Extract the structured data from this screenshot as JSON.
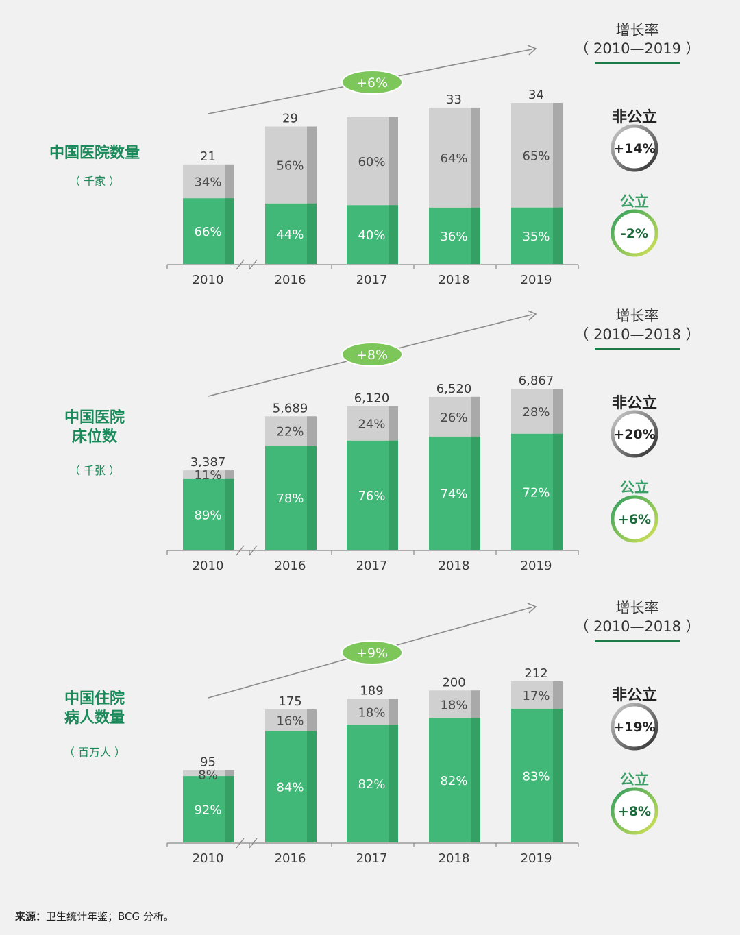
{
  "colors": {
    "public_green": "#41b878",
    "public_green_side": "#34a064",
    "private_gray": "#d0d0d0",
    "private_gray_side": "#a9a9a9",
    "title_green": "#1a8a5a",
    "underline_green": "#1a7a4a",
    "pill_green": "#7cc65a",
    "arrow_gray": "#8a8a8a"
  },
  "legend": {
    "growth_rate_label": "增长率",
    "non_public_label": "非公立",
    "public_label": "公立"
  },
  "chart_data": [
    {
      "type": "bar",
      "title": "中国医院数量",
      "unit": "（ 千家 ）",
      "categories": [
        "2010",
        "2016",
        "2017",
        "2018",
        "2019"
      ],
      "totals": [
        "21",
        "29",
        "",
        "33",
        "34"
      ],
      "total_values": [
        21,
        29,
        31,
        33,
        34
      ],
      "series": [
        {
          "name": "公立",
          "values": [
            66,
            44,
            40,
            36,
            35
          ],
          "labels": [
            "66%",
            "44%",
            "40%",
            "36%",
            "35%"
          ]
        },
        {
          "name": "非公立",
          "values": [
            34,
            56,
            60,
            64,
            65
          ],
          "labels": [
            "34%",
            "56%",
            "60%",
            "64%",
            "65%"
          ]
        }
      ],
      "cagr": "+6%",
      "growth_period": "（ 2010—2019 ）",
      "non_public_growth": "+14%",
      "public_growth": "-2%"
    },
    {
      "type": "bar",
      "title": "中国医院床位数",
      "title_lines": [
        "中国医院",
        "床位数"
      ],
      "unit": "（ 千张 ）",
      "categories": [
        "2010",
        "2016",
        "2017",
        "2018",
        "2019"
      ],
      "totals": [
        "3,387",
        "5,689",
        "6,120",
        "6,520",
        "6,867"
      ],
      "total_values": [
        3387,
        5689,
        6120,
        6520,
        6867
      ],
      "series": [
        {
          "name": "公立",
          "values": [
            89,
            78,
            76,
            74,
            72
          ],
          "labels": [
            "89%",
            "78%",
            "76%",
            "74%",
            "72%"
          ]
        },
        {
          "name": "非公立",
          "values": [
            11,
            22,
            24,
            26,
            28
          ],
          "labels": [
            "11%",
            "22%",
            "24%",
            "26%",
            "28%"
          ]
        }
      ],
      "cagr": "+8%",
      "growth_period": "（ 2010—2018 ）",
      "non_public_growth": "+20%",
      "public_growth": "+6%"
    },
    {
      "type": "bar",
      "title": "中国住院病人数量",
      "title_lines": [
        "中国住院",
        "病人数量"
      ],
      "unit": "（ 百万人 ）",
      "categories": [
        "2010",
        "2016",
        "2017",
        "2018",
        "2019"
      ],
      "totals": [
        "95",
        "175",
        "189",
        "200",
        "212"
      ],
      "total_values": [
        95,
        175,
        189,
        200,
        212
      ],
      "series": [
        {
          "name": "公立",
          "values": [
            92,
            84,
            82,
            82,
            83
          ],
          "labels": [
            "92%",
            "84%",
            "82%",
            "82%",
            "83%"
          ]
        },
        {
          "name": "非公立",
          "values": [
            8,
            16,
            18,
            18,
            17
          ],
          "labels": [
            "8%",
            "16%",
            "18%",
            "18%",
            "17%"
          ]
        }
      ],
      "cagr": "+9%",
      "growth_period": "（ 2010—2018 ）",
      "non_public_growth": "+19%",
      "public_growth": "+8%"
    }
  ],
  "footer": {
    "source_label": "来源：",
    "source_text": "卫生统计年鉴；BCG 分析。"
  }
}
